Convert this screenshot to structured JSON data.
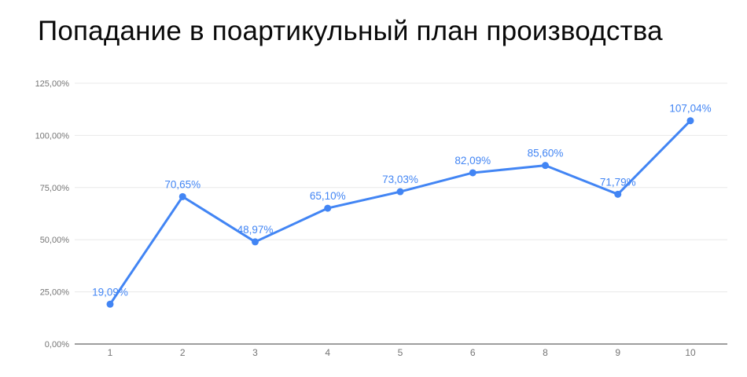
{
  "title": "Попадание в поартикульный план производства",
  "chart_data": {
    "type": "line",
    "title": "Попадание в поартикульный план производства",
    "categories": [
      "1",
      "2",
      "3",
      "4",
      "5",
      "6",
      "8",
      "9",
      "10"
    ],
    "series": [
      {
        "name": "Попадание в поартикульный план производства",
        "values": [
          19.09,
          70.65,
          48.97,
          65.1,
          73.03,
          82.09,
          85.6,
          71.79,
          107.04
        ]
      }
    ],
    "point_labels": [
      "19,09%",
      "70,65%",
      "48,97%",
      "65,10%",
      "73,03%",
      "82,09%",
      "85,60%",
      "71,79%",
      "107,04%"
    ],
    "yticks": [
      0,
      25,
      50,
      75,
      100,
      125
    ],
    "ytick_labels": [
      "0,00%",
      "25,00%",
      "50,00%",
      "75,00%",
      "100,00%",
      "125,00%"
    ],
    "ylim": [
      0,
      125
    ],
    "xlabel": "",
    "ylabel": "",
    "grid": "horizontal-only",
    "legend": "none",
    "colors": {
      "series": "#4285f4",
      "data_label": "#4285f4",
      "axis_text": "#757575",
      "gridline": "#e8e8e8",
      "axis_line": "#9e9e9e",
      "title": "#0a0a0a",
      "background": "#ffffff"
    }
  }
}
